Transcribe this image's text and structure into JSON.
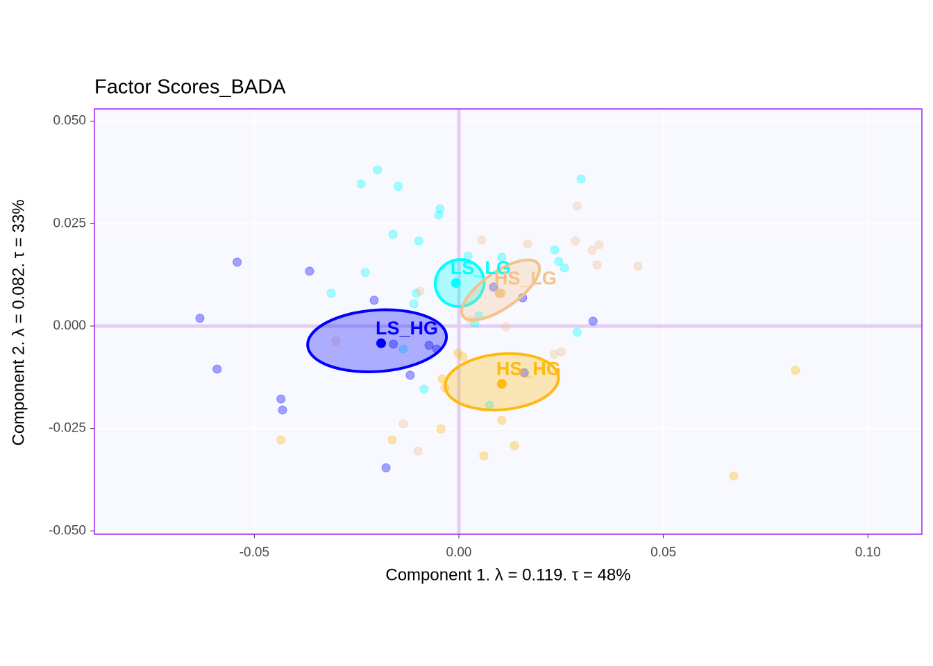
{
  "chart_data": {
    "type": "scatter",
    "title": "Factor Scores_BADA",
    "x_label": "Component 1.   λ = 0.119.  τ = 48%",
    "y_label": "Component 2.   λ = 0.082.  τ = 33%",
    "xlim": [
      -0.0891,
      0.1132
    ],
    "ylim": [
      -0.0508,
      0.053
    ],
    "xticks": [
      {
        "value": -0.05,
        "label": "-0.05"
      },
      {
        "value": 0,
        "label": "0.00"
      },
      {
        "value": 0.05,
        "label": "0.05"
      },
      {
        "value": 0.1,
        "label": "0.10"
      }
    ],
    "yticks": [
      {
        "value": -0.05,
        "label": "-0.050"
      },
      {
        "value": -0.025,
        "label": "-0.025"
      },
      {
        "value": 0,
        "label": "0.000"
      },
      {
        "value": 0.025,
        "label": "0.025"
      },
      {
        "value": 0.05,
        "label": "0.050"
      }
    ],
    "grid": true,
    "origin_lines": true,
    "series": [
      {
        "name": "LS_HG",
        "color": "#0000ff",
        "x": [
          -0.0542,
          -0.0633,
          -0.0591,
          -0.0365,
          -0.0207,
          -0.016,
          -0.0119,
          -0.0435,
          -0.0431,
          -0.0178,
          0.0085,
          0.0156,
          0.0328,
          0.016,
          -0.0054,
          -0.0073
        ],
        "y": [
          0.0156,
          0.0019,
          -0.0105,
          0.0134,
          0.0063,
          -0.0044,
          -0.012,
          -0.0178,
          -0.0205,
          -0.0346,
          0.0095,
          0.0069,
          0.0012,
          -0.0114,
          -0.0056,
          -0.0047
        ],
        "mean": {
          "x": -0.019,
          "y": -0.0042
        },
        "ellipse": {
          "cx": -0.02,
          "cy": -0.0036,
          "rx": 0.017,
          "ry": 0.0075,
          "angle": 4
        }
      },
      {
        "name": "LS_LG",
        "color": "#00ffff",
        "x": [
          -0.0199,
          -0.0239,
          -0.0148,
          -0.0046,
          -0.0049,
          -0.0161,
          -0.0098,
          -0.0229,
          -0.0312,
          -0.011,
          -0.0104,
          0.0022,
          0.0105,
          0.0299,
          0.0234,
          0.0244,
          0.0258,
          0.0289,
          0.0049,
          0.0039,
          -0.0136,
          -0.0085,
          0.0075
        ],
        "y": [
          0.0381,
          0.0347,
          0.0341,
          0.0286,
          0.0271,
          0.0224,
          0.0208,
          0.0131,
          0.008,
          0.0054,
          0.008,
          0.0171,
          0.0168,
          0.0359,
          0.0186,
          0.0158,
          0.0142,
          -0.0015,
          0.0025,
          0.0007,
          -0.0056,
          -0.0154,
          -0.0193
        ],
        "mean": {
          "x": -0.0007,
          "y": 0.0105
        },
        "ellipse": {
          "cx": 0.0002,
          "cy": 0.0105,
          "rx": 0.006,
          "ry": 0.0057,
          "angle": 20
        }
      },
      {
        "name": "HS_LG",
        "color": "#f2c38a",
        "x": [
          0.0056,
          0.0168,
          0.0285,
          0.0289,
          0.0343,
          0.0326,
          0.0338,
          0.0438,
          -0.0095,
          0.01,
          0.0115,
          0.0029,
          -0.0301,
          -0.0136,
          -0.01,
          0.0233,
          0.025
        ],
        "y": [
          0.021,
          0.02,
          0.0208,
          0.0293,
          0.0198,
          0.0185,
          0.0149,
          0.0146,
          0.0085,
          0.008,
          -0.0002,
          0.0015,
          -0.0036,
          -0.0239,
          -0.0305,
          -0.0069,
          -0.0063
        ],
        "mean": {
          "x": 0.01,
          "y": 0.008
        },
        "ellipse": {
          "cx": 0.0102,
          "cy": 0.0088,
          "rx": 0.0112,
          "ry": 0.0044,
          "angle": 35
        }
      },
      {
        "name": "HS_HG",
        "color": "#ffb90f",
        "x": [
          -0.0435,
          -0.0163,
          -0.0044,
          0.0061,
          0.0136,
          0.0105,
          0.0672,
          0.0823,
          -0.0034,
          0.001,
          -0.0002,
          -0.0041,
          0.0104
        ],
        "y": [
          -0.0278,
          -0.0278,
          -0.0251,
          -0.0317,
          -0.0292,
          -0.023,
          -0.0366,
          -0.0108,
          -0.0151,
          -0.0075,
          -0.0066,
          -0.0129,
          0.008
        ],
        "mean": {
          "x": 0.0105,
          "y": -0.0141
        },
        "ellipse": {
          "cx": 0.0105,
          "cy": -0.0136,
          "rx": 0.0139,
          "ry": 0.0068,
          "angle": 5
        }
      }
    ]
  }
}
